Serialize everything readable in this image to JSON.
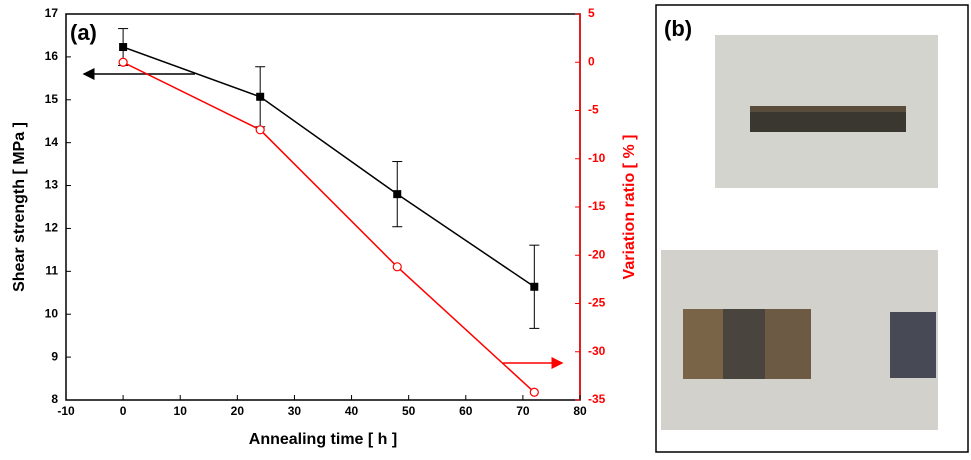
{
  "chart_data": {
    "type": "line",
    "panel_label": "(a)",
    "xlabel": "Annealing time [ h ]",
    "ylabel": "Shear strength [ MPa ]",
    "y2label": "Variation ratio [ % ]",
    "x": [
      0,
      24,
      48,
      72
    ],
    "series": [
      {
        "color": "#000000",
        "values": [
          16.23,
          15.07,
          12.8,
          10.64
        ],
        "errors": [
          0.43,
          0.7,
          0.76,
          0.97
        ],
        "marker": "square"
      },
      {
        "color": "#ff0000",
        "values": [
          0,
          -7,
          -21.2,
          -34.2
        ],
        "axis": "y2",
        "marker": "open-circle"
      }
    ],
    "xlim": [
      -10,
      80
    ],
    "xticks": [
      -10,
      0,
      10,
      20,
      30,
      40,
      50,
      60,
      70,
      80
    ],
    "ylim": [
      8,
      17
    ],
    "yticks": [
      8,
      9,
      10,
      11,
      12,
      13,
      14,
      15,
      16,
      17
    ],
    "y2lim": [
      -35,
      5
    ],
    "y2ticks": [
      -35,
      -30,
      -25,
      -20,
      -15,
      -10,
      -5,
      0,
      5
    ],
    "grid": false
  },
  "panel_b": {
    "label": "(b)"
  }
}
